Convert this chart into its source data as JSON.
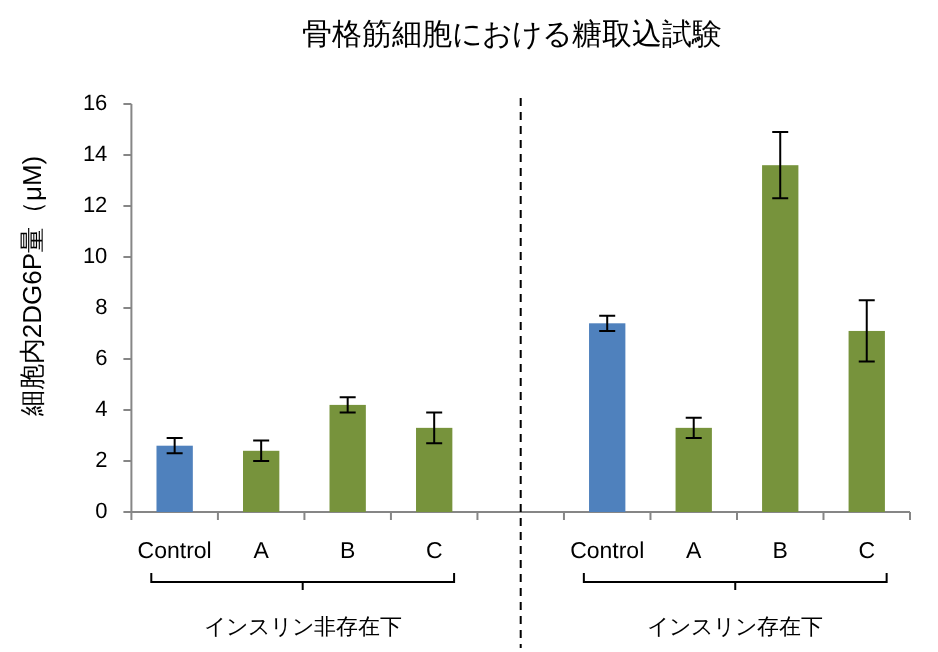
{
  "chart_data": {
    "type": "bar",
    "title": "骨格筋細胞における糖取込試験",
    "ylabel": "細胞内2DG6P量（μM)",
    "categories": [
      "Control",
      "A",
      "B",
      "C",
      null,
      "Control",
      "A",
      "B",
      "C"
    ],
    "values": [
      2.6,
      2.4,
      4.2,
      3.3,
      null,
      7.4,
      3.3,
      13.6,
      7.1
    ],
    "errors": [
      0.3,
      0.4,
      0.3,
      0.6,
      null,
      0.3,
      0.4,
      1.3,
      1.2
    ],
    "colors": [
      "#4f81bd",
      "#77933c",
      "#77933c",
      "#77933c",
      null,
      "#4f81bd",
      "#77933c",
      "#77933c",
      "#77933c"
    ],
    "ylim": [
      0,
      16
    ],
    "yticks": [
      0,
      2,
      4,
      6,
      8,
      10,
      12,
      14,
      16
    ],
    "annotations": [
      "インスリン非存在下",
      "インスリン存在下"
    ]
  }
}
